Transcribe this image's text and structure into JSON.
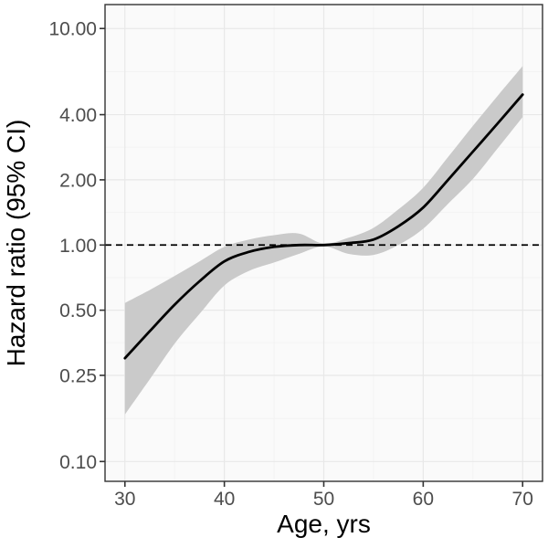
{
  "chart_data": {
    "type": "line",
    "title": "",
    "xlabel": "Age, yrs",
    "ylabel": "Hazard ratio (95% CI)",
    "x_scale": "linear",
    "y_scale": "log10",
    "xlim": [
      28,
      72
    ],
    "ylim": [
      0.081,
      12.9
    ],
    "grid": true,
    "legend": false,
    "x": [
      30,
      32.5,
      35,
      37.5,
      40,
      42.5,
      45,
      47.5,
      50,
      52.5,
      55,
      57.5,
      60,
      62.5,
      65,
      67.5,
      70
    ],
    "series": [
      {
        "name": "Hazard ratio",
        "role": "line",
        "values": [
          0.3,
          0.4,
          0.53,
          0.68,
          0.84,
          0.93,
          0.98,
          1.0,
          1.0,
          1.02,
          1.06,
          1.22,
          1.49,
          2.0,
          2.7,
          3.65,
          4.95
        ]
      },
      {
        "name": "95% CI upper",
        "role": "band-upper",
        "values": [
          0.54,
          0.62,
          0.72,
          0.84,
          0.98,
          1.06,
          1.11,
          1.13,
          1.015,
          1.08,
          1.2,
          1.46,
          1.84,
          2.55,
          3.55,
          4.9,
          6.7
        ]
      },
      {
        "name": "95% CI lower",
        "role": "band-lower",
        "values": [
          0.165,
          0.24,
          0.35,
          0.48,
          0.65,
          0.76,
          0.83,
          0.91,
          0.985,
          0.91,
          0.9,
          1.0,
          1.19,
          1.55,
          2.02,
          2.8,
          3.9
        ]
      }
    ],
    "reference_line": {
      "y": 1.0,
      "style": "dashed"
    },
    "x_axis": {
      "ticks": [
        {
          "value": 30,
          "label": "30"
        },
        {
          "value": 40,
          "label": "40"
        },
        {
          "value": 50,
          "label": "50"
        },
        {
          "value": 60,
          "label": "60"
        },
        {
          "value": 70,
          "label": "70"
        }
      ],
      "minor": [
        35,
        45,
        55,
        65
      ]
    },
    "y_axis": {
      "ticks": [
        {
          "value": 10,
          "label": "10.00"
        },
        {
          "value": 4,
          "label": "4.00"
        },
        {
          "value": 2,
          "label": "2.00"
        },
        {
          "value": 1,
          "label": "1.00"
        },
        {
          "value": 0.5,
          "label": "0.50"
        },
        {
          "value": 0.25,
          "label": "0.25"
        },
        {
          "value": 0.1,
          "label": "0.10"
        }
      ],
      "minor": [
        6.32,
        2.83,
        1.414,
        0.707,
        0.354,
        0.158
      ]
    },
    "colors": {
      "curve": "#000000",
      "band": "#cacaca",
      "panel_bg": "#fafafa",
      "grid_major": "#e8e8e8",
      "grid_minor": "#f3f3f3",
      "panel_border": "#333333",
      "tick_mark": "#333333",
      "tick_label": "#4d4d4d",
      "axis_title": "#000000",
      "reference_line": "#000000"
    }
  }
}
